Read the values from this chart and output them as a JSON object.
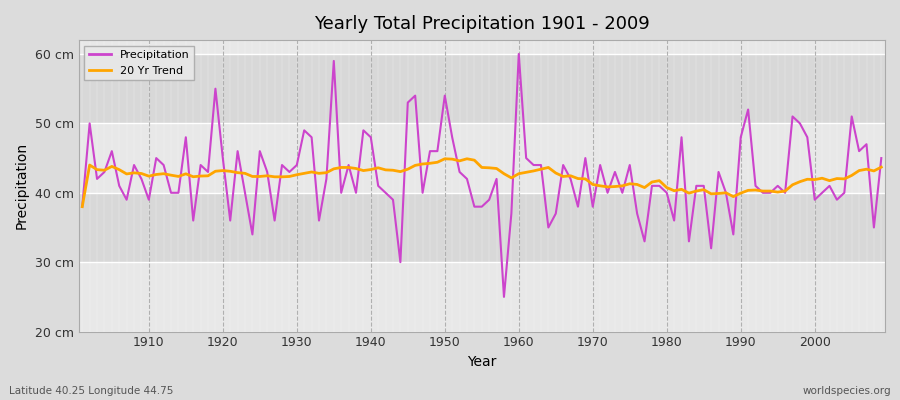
{
  "title": "Yearly Total Precipitation 1901 - 2009",
  "xlabel": "Year",
  "ylabel": "Precipitation",
  "footnote_left": "Latitude 40.25 Longitude 44.75",
  "footnote_right": "worldspecies.org",
  "precipitation_color": "#CC44CC",
  "trend_color": "#FFA500",
  "outer_bg": "#E0E0E0",
  "plot_bg_light": "#E8E8E8",
  "plot_bg_dark": "#D0D0D0",
  "ylim": [
    20,
    62
  ],
  "yticks": [
    20,
    30,
    40,
    50,
    60
  ],
  "ytick_labels": [
    "20 cm",
    "30 cm",
    "40 cm",
    "50 cm",
    "60 cm"
  ],
  "years": [
    1901,
    1902,
    1903,
    1904,
    1905,
    1906,
    1907,
    1908,
    1909,
    1910,
    1911,
    1912,
    1913,
    1914,
    1915,
    1916,
    1917,
    1918,
    1919,
    1920,
    1921,
    1922,
    1923,
    1924,
    1925,
    1926,
    1927,
    1928,
    1929,
    1930,
    1931,
    1932,
    1933,
    1934,
    1935,
    1936,
    1937,
    1938,
    1939,
    1940,
    1941,
    1942,
    1943,
    1944,
    1945,
    1946,
    1947,
    1948,
    1949,
    1950,
    1951,
    1952,
    1953,
    1954,
    1955,
    1956,
    1957,
    1958,
    1959,
    1960,
    1961,
    1962,
    1963,
    1964,
    1965,
    1966,
    1967,
    1968,
    1969,
    1970,
    1971,
    1972,
    1973,
    1974,
    1975,
    1976,
    1977,
    1978,
    1979,
    1980,
    1981,
    1982,
    1983,
    1984,
    1985,
    1986,
    1987,
    1988,
    1989,
    1990,
    1991,
    1992,
    1993,
    1994,
    1995,
    1996,
    1997,
    1998,
    1999,
    2000,
    2001,
    2002,
    2003,
    2004,
    2005,
    2006,
    2007,
    2008,
    2009
  ],
  "precipitation": [
    38,
    50,
    42,
    43,
    46,
    41,
    39,
    44,
    42,
    39,
    45,
    44,
    40,
    40,
    48,
    36,
    44,
    43,
    55,
    45,
    36,
    46,
    40,
    34,
    46,
    43,
    36,
    44,
    43,
    44,
    49,
    48,
    36,
    42,
    59,
    40,
    44,
    40,
    49,
    48,
    41,
    40,
    39,
    30,
    53,
    54,
    40,
    46,
    46,
    54,
    48,
    43,
    42,
    38,
    38,
    39,
    42,
    25,
    37,
    60,
    45,
    44,
    44,
    35,
    37,
    44,
    42,
    38,
    45,
    38,
    44,
    40,
    43,
    40,
    44,
    37,
    33,
    41,
    41,
    40,
    36,
    48,
    33,
    41,
    41,
    32,
    43,
    40,
    34,
    48,
    52,
    41,
    40,
    40,
    41,
    40,
    51,
    50,
    48,
    39,
    40,
    41,
    39,
    40,
    51,
    46,
    47,
    35,
    45
  ],
  "xtick_vals": [
    1910,
    1920,
    1930,
    1940,
    1950,
    1960,
    1970,
    1980,
    1990,
    2000
  ]
}
